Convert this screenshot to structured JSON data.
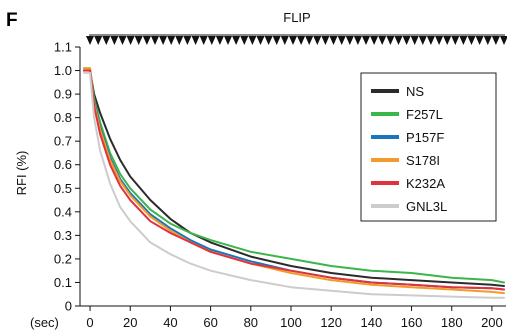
{
  "panel_label": "F",
  "chart_data": {
    "type": "line",
    "title": "",
    "xlabel": "(sec)",
    "ylabel": "RFI (%)",
    "xlim": [
      -5,
      207
    ],
    "ylim": [
      0,
      1.1
    ],
    "x_ticks": [
      0,
      20,
      40,
      60,
      80,
      100,
      120,
      140,
      160,
      180,
      200
    ],
    "y_ticks": [
      0,
      0.1,
      0.2,
      0.3,
      0.4,
      0.5,
      0.6,
      0.7,
      0.8,
      0.9,
      1.0,
      1.1
    ],
    "y_tick_labels": [
      "0",
      "0.1",
      "0.2",
      "0.3",
      "0.4",
      "0.5",
      "0.6",
      "0.7",
      "0.8",
      "0.9",
      "1.0",
      "1.1"
    ],
    "grid": false,
    "legend_position": "top-right",
    "annotation": {
      "label": "FLIP",
      "marker": "down-triangle",
      "x_start": 0,
      "x_end": 206,
      "count": 52
    },
    "x": [
      -3,
      0,
      2,
      5,
      10,
      15,
      20,
      30,
      40,
      50,
      60,
      80,
      100,
      120,
      140,
      160,
      180,
      200,
      206
    ],
    "series": [
      {
        "name": "NS",
        "color": "#2b2b2b",
        "values": [
          1.0,
          1.0,
          0.9,
          0.82,
          0.71,
          0.62,
          0.55,
          0.45,
          0.37,
          0.31,
          0.27,
          0.21,
          0.17,
          0.14,
          0.12,
          0.11,
          0.1,
          0.09,
          0.085
        ]
      },
      {
        "name": "F257L",
        "color": "#3cb54a",
        "values": [
          1.01,
          1.01,
          0.88,
          0.78,
          0.65,
          0.56,
          0.5,
          0.41,
          0.35,
          0.31,
          0.28,
          0.23,
          0.2,
          0.17,
          0.15,
          0.14,
          0.12,
          0.11,
          0.1
        ]
      },
      {
        "name": "P157F",
        "color": "#1a76bb",
        "values": [
          1.0,
          1.0,
          0.87,
          0.76,
          0.63,
          0.54,
          0.48,
          0.39,
          0.33,
          0.28,
          0.24,
          0.19,
          0.15,
          0.12,
          0.1,
          0.09,
          0.08,
          0.075,
          0.07
        ]
      },
      {
        "name": "S178I",
        "color": "#f39b2a",
        "values": [
          1.01,
          1.01,
          0.86,
          0.75,
          0.62,
          0.53,
          0.47,
          0.38,
          0.32,
          0.27,
          0.23,
          0.18,
          0.14,
          0.11,
          0.09,
          0.08,
          0.07,
          0.06,
          0.055
        ]
      },
      {
        "name": "K232A",
        "color": "#e2323b",
        "values": [
          1.0,
          1.0,
          0.85,
          0.73,
          0.6,
          0.51,
          0.45,
          0.36,
          0.31,
          0.27,
          0.23,
          0.18,
          0.15,
          0.12,
          0.1,
          0.09,
          0.08,
          0.075,
          0.07
        ]
      },
      {
        "name": "GNL3L",
        "color": "#cccccc",
        "values": [
          0.99,
          0.99,
          0.8,
          0.66,
          0.52,
          0.42,
          0.36,
          0.27,
          0.22,
          0.18,
          0.15,
          0.11,
          0.08,
          0.065,
          0.05,
          0.045,
          0.04,
          0.035,
          0.035
        ]
      }
    ]
  }
}
